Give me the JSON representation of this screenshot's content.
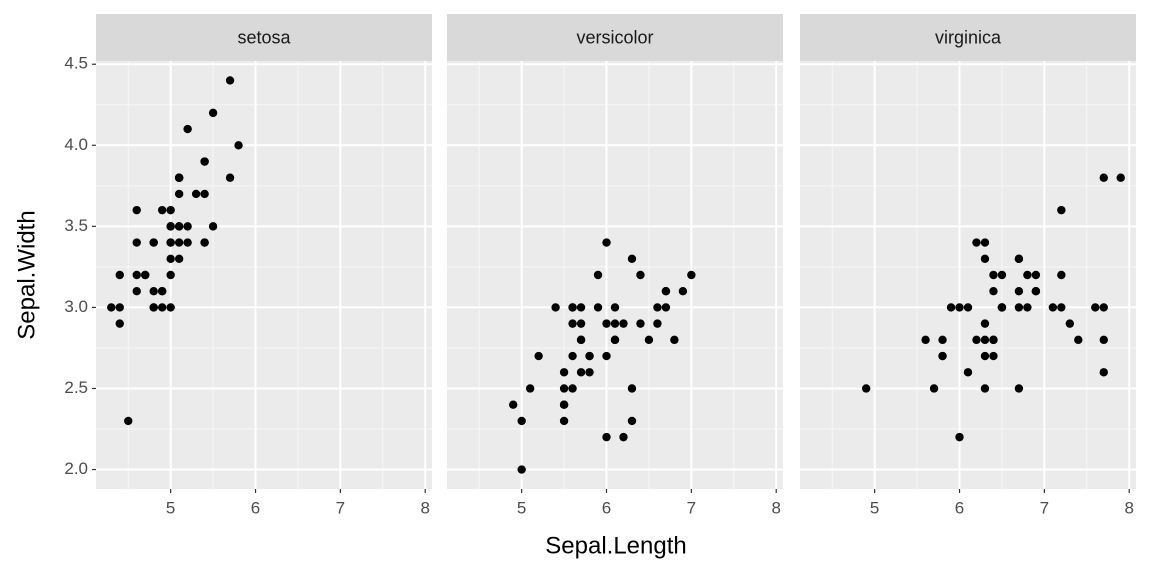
{
  "chart_data": {
    "type": "scatter",
    "x_label": "Sepal.Length",
    "y_label": "Sepal.Width",
    "color": "#000000",
    "grid": true,
    "xlim": [
      4.12,
      8.08
    ],
    "ylim": [
      1.88,
      4.52
    ],
    "xticks": [
      5,
      6,
      7,
      8
    ],
    "yticks": [
      {
        "value": 2.0,
        "label": "2.0"
      },
      {
        "value": 2.5,
        "label": "2.5"
      },
      {
        "value": 3.0,
        "label": "3.0"
      },
      {
        "value": 3.5,
        "label": "3.5"
      },
      {
        "value": 4.0,
        "label": "4.0"
      },
      {
        "value": 4.5,
        "label": "4.5"
      }
    ],
    "panels": [
      {
        "title": "setosa",
        "x": [
          5.1,
          4.9,
          4.7,
          4.6,
          5.0,
          5.4,
          4.6,
          5.0,
          4.4,
          4.9,
          5.4,
          4.8,
          4.8,
          4.3,
          5.8,
          5.7,
          5.4,
          5.1,
          5.7,
          5.1,
          5.4,
          5.1,
          4.6,
          5.1,
          4.8,
          5.0,
          5.0,
          5.2,
          5.2,
          4.7,
          4.8,
          5.4,
          5.2,
          5.5,
          4.9,
          5.0,
          5.5,
          4.9,
          4.4,
          5.1,
          5.0,
          4.5,
          4.4,
          5.0,
          5.1,
          4.8,
          5.1,
          4.6,
          5.3,
          5.0
        ],
        "y": [
          3.5,
          3.0,
          3.2,
          3.1,
          3.6,
          3.9,
          3.4,
          3.4,
          2.9,
          3.1,
          3.7,
          3.4,
          3.0,
          3.0,
          4.0,
          4.4,
          3.9,
          3.5,
          3.8,
          3.8,
          3.4,
          3.7,
          3.6,
          3.3,
          3.4,
          3.0,
          3.4,
          3.5,
          3.4,
          3.2,
          3.1,
          3.4,
          4.1,
          4.2,
          3.1,
          3.2,
          3.5,
          3.6,
          3.0,
          3.4,
          3.5,
          2.3,
          3.2,
          3.5,
          3.8,
          3.0,
          3.8,
          3.2,
          3.7,
          3.3
        ]
      },
      {
        "title": "versicolor",
        "x": [
          7.0,
          6.4,
          6.9,
          5.5,
          6.5,
          5.7,
          6.3,
          4.9,
          6.6,
          5.2,
          5.0,
          5.9,
          6.0,
          6.1,
          5.6,
          6.7,
          5.6,
          5.8,
          6.2,
          5.6,
          5.9,
          6.1,
          6.3,
          6.1,
          6.4,
          6.6,
          6.8,
          6.7,
          6.0,
          5.7,
          5.5,
          5.5,
          5.8,
          6.0,
          5.4,
          6.0,
          6.7,
          6.3,
          5.6,
          5.5,
          5.5,
          6.1,
          5.8,
          5.0,
          5.6,
          5.7,
          5.7,
          6.2,
          5.1,
          5.7
        ],
        "y": [
          3.2,
          3.2,
          3.1,
          2.3,
          2.8,
          2.8,
          3.3,
          2.4,
          2.9,
          2.7,
          2.0,
          3.0,
          2.2,
          2.9,
          2.9,
          3.1,
          3.0,
          2.7,
          2.2,
          2.5,
          3.2,
          2.8,
          2.5,
          2.8,
          2.9,
          3.0,
          2.8,
          3.0,
          2.9,
          2.6,
          2.4,
          2.4,
          2.7,
          2.7,
          3.0,
          3.4,
          3.1,
          2.3,
          3.0,
          2.5,
          2.6,
          3.0,
          2.6,
          2.3,
          2.7,
          3.0,
          2.9,
          2.9,
          2.5,
          2.8
        ]
      },
      {
        "title": "virginica",
        "x": [
          6.3,
          5.8,
          7.1,
          6.3,
          6.5,
          7.6,
          4.9,
          7.3,
          6.7,
          7.2,
          6.5,
          6.4,
          6.8,
          5.7,
          5.8,
          6.4,
          6.5,
          7.7,
          7.7,
          6.0,
          6.9,
          5.6,
          7.7,
          6.3,
          6.7,
          7.2,
          6.2,
          6.1,
          6.4,
          7.2,
          7.4,
          7.9,
          6.4,
          6.3,
          6.1,
          7.7,
          6.3,
          6.4,
          6.0,
          6.9,
          6.7,
          6.9,
          5.8,
          6.8,
          6.7,
          6.7,
          6.3,
          6.5,
          6.2,
          5.9
        ],
        "y": [
          3.3,
          2.7,
          3.0,
          2.9,
          3.0,
          3.0,
          2.5,
          2.9,
          2.5,
          3.6,
          3.2,
          2.7,
          3.0,
          2.5,
          2.8,
          3.2,
          3.0,
          3.8,
          2.6,
          2.2,
          3.2,
          2.8,
          2.8,
          2.7,
          3.3,
          3.2,
          2.8,
          3.0,
          2.8,
          3.0,
          2.8,
          3.8,
          2.8,
          2.8,
          2.6,
          3.0,
          3.4,
          3.1,
          3.0,
          3.1,
          3.1,
          3.1,
          2.7,
          3.2,
          3.3,
          3.0,
          2.5,
          3.0,
          3.4,
          3.0
        ]
      }
    ]
  }
}
